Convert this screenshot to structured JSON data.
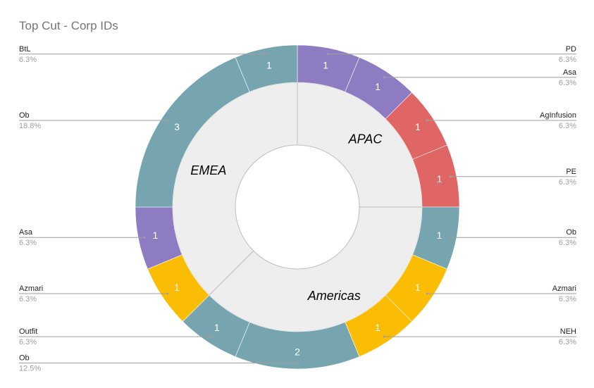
{
  "chart_data": {
    "type": "pie",
    "title": "Top Cut - Corp IDs",
    "inner_ring": [
      {
        "name": "APAC",
        "value": 4
      },
      {
        "name": "Americas",
        "value": 6
      },
      {
        "name": "EMEA",
        "value": 6
      }
    ],
    "outer_ring": [
      {
        "name": "PD",
        "value": 1,
        "percent": "6.3%",
        "color": "#8e7cc3",
        "region": "APAC"
      },
      {
        "name": "Asa",
        "value": 1,
        "percent": "6.3%",
        "color": "#8e7cc3",
        "region": "APAC"
      },
      {
        "name": "AgInfusion",
        "value": 1,
        "percent": "6.3%",
        "color": "#e06666",
        "region": "APAC"
      },
      {
        "name": "PE",
        "value": 1,
        "percent": "6.3%",
        "color": "#e06666",
        "region": "APAC"
      },
      {
        "name": "Ob",
        "value": 1,
        "percent": "6.3%",
        "color": "#76a5af",
        "region": "Americas"
      },
      {
        "name": "Azmari",
        "value": 1,
        "percent": "6.3%",
        "color": "#fbbc04",
        "region": "Americas"
      },
      {
        "name": "NEH",
        "value": 1,
        "percent": "6.3%",
        "color": "#fbbc04",
        "region": "Americas"
      },
      {
        "name": "Ob",
        "value": 2,
        "percent": "12.5%",
        "color": "#76a5af",
        "region": "Americas"
      },
      {
        "name": "Outfit",
        "value": 1,
        "percent": "6.3%",
        "color": "#76a5af",
        "region": "Americas"
      },
      {
        "name": "Azmari",
        "value": 1,
        "percent": "6.3%",
        "color": "#fbbc04",
        "region": "EMEA"
      },
      {
        "name": "Asa",
        "value": 1,
        "percent": "6.3%",
        "color": "#8e7cc3",
        "region": "EMEA"
      },
      {
        "name": "Ob",
        "value": 3,
        "percent": "18.8%",
        "color": "#76a5af",
        "region": "EMEA"
      },
      {
        "name": "BtL",
        "value": 1,
        "percent": "6.3%",
        "color": "#76a5af",
        "region": "EMEA"
      }
    ],
    "inner_color": "#eeeeee",
    "legend": "none"
  }
}
